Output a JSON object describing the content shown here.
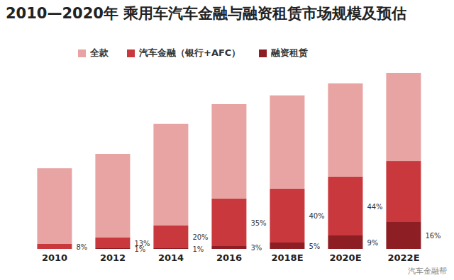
{
  "chart_data": {
    "type": "bar",
    "title": "2010—2020年 乘用车汽车金融与融资租赁市场规模及预估",
    "categories": [
      "2010",
      "2012",
      "2014",
      "2016",
      "2018E",
      "2020E",
      "2022E"
    ],
    "series": [
      {
        "name": "全款",
        "color": "#e8a3a3",
        "values": [
          107,
          118,
          144,
          134,
          132,
          132,
          125
        ],
        "labels": [
          null,
          null,
          null,
          null,
          null,
          null,
          null
        ]
      },
      {
        "name": "汽车金融（银行+AFC）",
        "color": "#c9383d",
        "values": [
          7,
          15,
          32,
          67,
          76,
          83,
          86
        ],
        "labels": [
          "8%",
          "13%",
          "20%",
          "35%",
          "40%",
          "44%",
          null
        ]
      },
      {
        "name": "融资租赁",
        "color": "#8c1e24",
        "values": [
          0,
          1,
          1,
          4,
          9,
          19,
          38
        ],
        "labels": [
          null,
          "1%",
          "1%",
          "3%",
          "5%",
          "9%",
          "16%"
        ]
      }
    ],
    "ylim": [
      0,
      260
    ],
    "stacked": true,
    "tick_labels": "x",
    "legend": "top",
    "watermark": "汽车金融帮"
  }
}
